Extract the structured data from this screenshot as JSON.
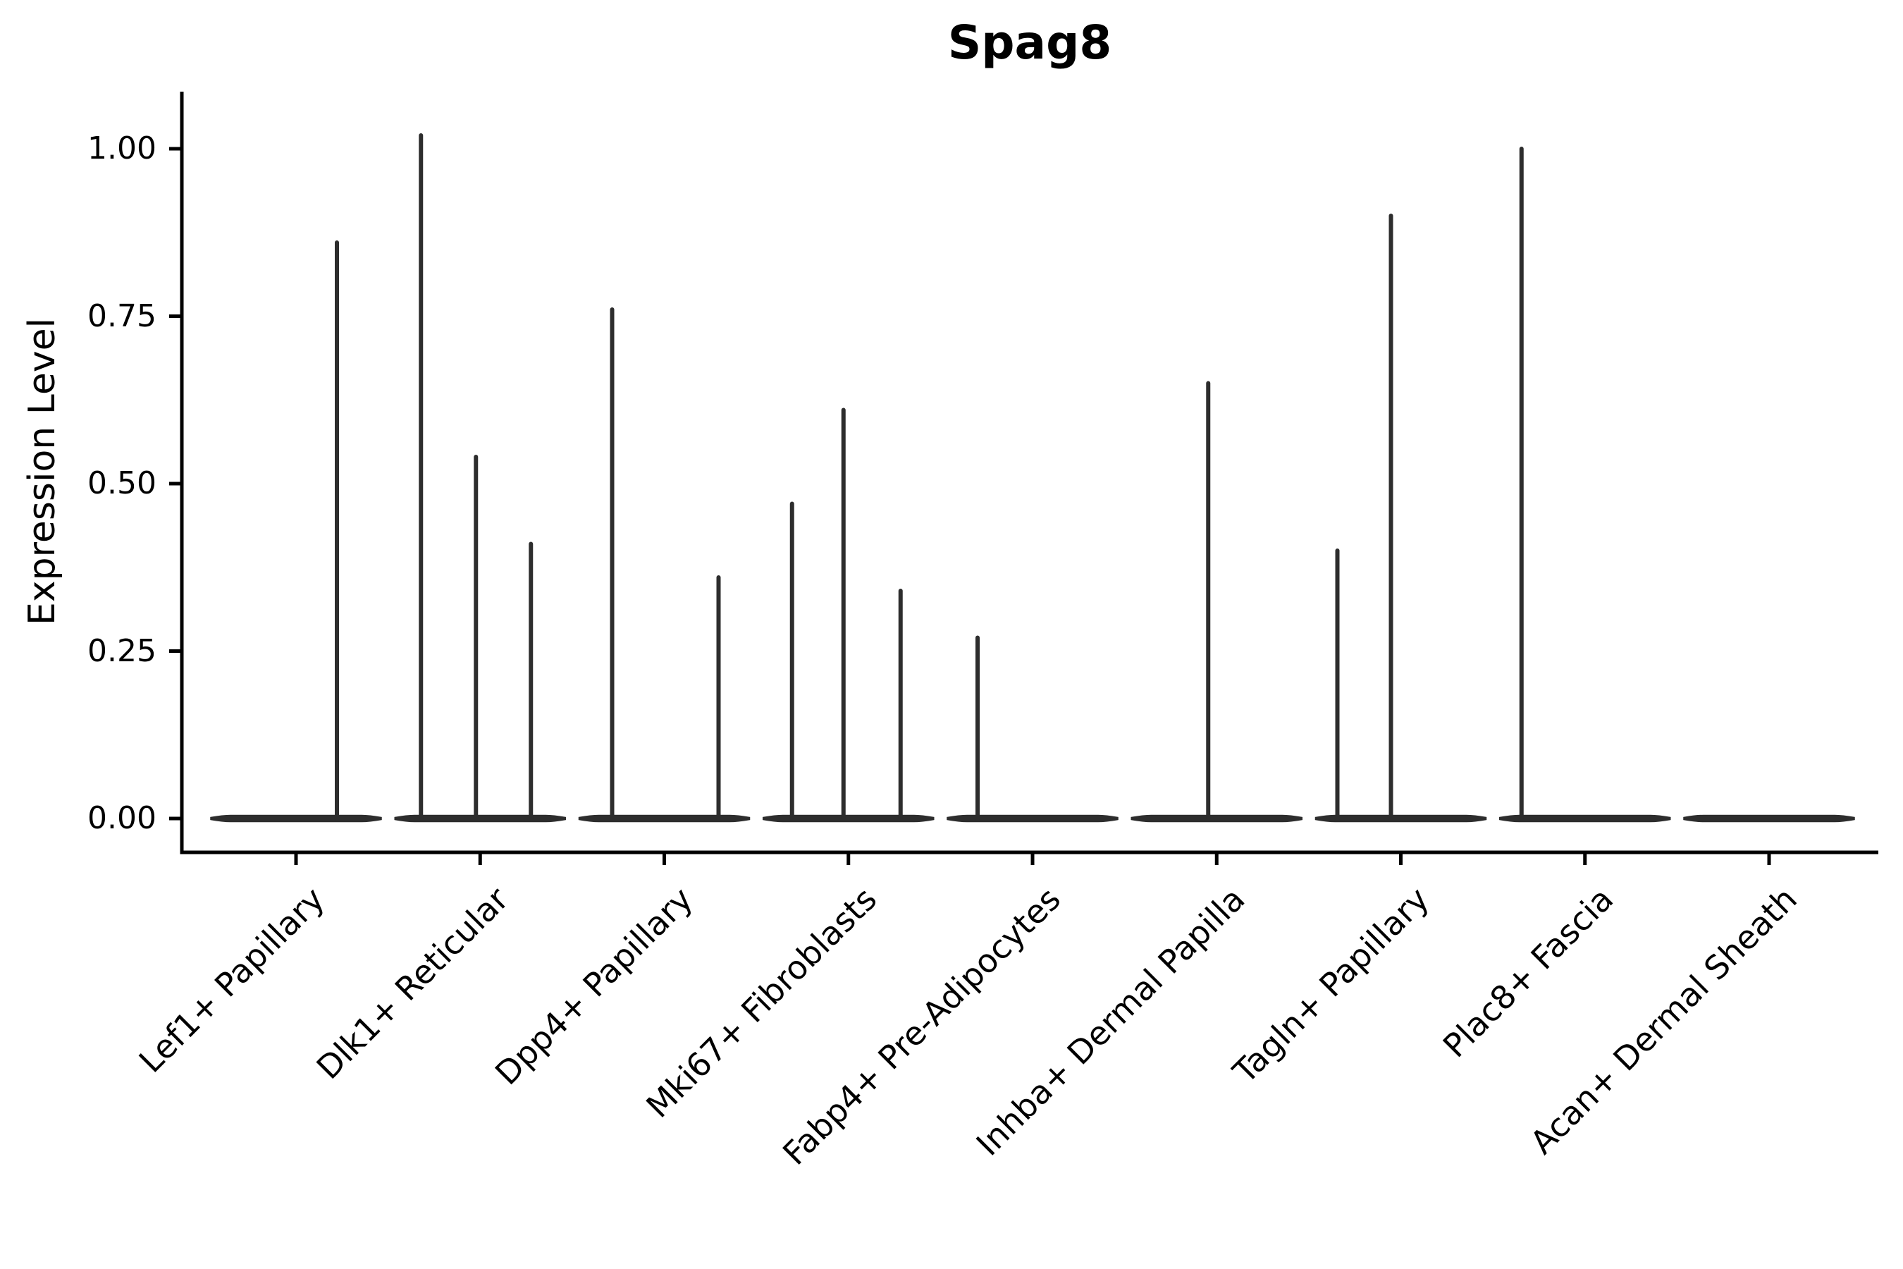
{
  "title": "Spag8",
  "y_axis": {
    "label": "Expression Level",
    "tick_labels": [
      "0.00",
      "0.25",
      "0.50",
      "0.75",
      "1.00"
    ],
    "tick_values": [
      0,
      0.25,
      0.5,
      0.75,
      1.0
    ]
  },
  "colors": {
    "violin": "#2d2d2d",
    "axis": "#000000",
    "text": "#000000",
    "background": "#ffffff"
  },
  "chart_data": {
    "type": "violin",
    "title": "Spag8",
    "xlabel": "",
    "ylabel": "Expression Level",
    "ylim": [
      -0.05,
      1.08
    ],
    "grid": false,
    "legend": "none",
    "y_ticks": [
      0,
      0.25,
      0.5,
      0.75,
      1.0
    ],
    "y_tick_labels": [
      "0.00",
      "0.25",
      "0.50",
      "0.75",
      "1.00"
    ],
    "categories": [
      "Lef1+ Papillary",
      "Dlk1+ Reticular",
      "Dpp4+ Papillary",
      "Mki67+ Fibroblasts",
      "Fabp4+ Pre-Adipocytes",
      "Inhba+ Dermal Papilla",
      "Tagln+ Papillary",
      "Plac8+ Fascia",
      "Acan+ Dermal Sheath"
    ],
    "description": "Violin plot of expression level per cluster; each violin is flat at 0 with thin spikes marking rare expressing cells.",
    "series": [
      {
        "category": "Lef1+ Papillary",
        "baseline_value": 0,
        "spikes": [
          {
            "offset": 58,
            "value": 0.86
          }
        ]
      },
      {
        "category": "Dlk1+ Reticular",
        "baseline_value": 0,
        "spikes": [
          {
            "offset": -84,
            "value": 1.02
          },
          {
            "offset": -6,
            "value": 0.54
          },
          {
            "offset": 72,
            "value": 0.41
          }
        ]
      },
      {
        "category": "Dpp4+ Papillary",
        "baseline_value": 0,
        "spikes": [
          {
            "offset": -74,
            "value": 0.76
          },
          {
            "offset": 77,
            "value": 0.36
          }
        ]
      },
      {
        "category": "Mki67+ Fibroblasts",
        "baseline_value": 0,
        "spikes": [
          {
            "offset": -80,
            "value": 0.47
          },
          {
            "offset": -7,
            "value": 0.61
          },
          {
            "offset": 74,
            "value": 0.34
          }
        ]
      },
      {
        "category": "Fabp4+ Pre-Adipocytes",
        "baseline_value": 0,
        "spikes": [
          {
            "offset": -78,
            "value": 0.27
          }
        ]
      },
      {
        "category": "Inhba+ Dermal Papilla",
        "baseline_value": 0,
        "spikes": [
          {
            "offset": -12,
            "value": 0.65
          }
        ]
      },
      {
        "category": "Tagln+ Papillary",
        "baseline_value": 0,
        "spikes": [
          {
            "offset": -90,
            "value": 0.4
          },
          {
            "offset": -14,
            "value": 0.9
          }
        ]
      },
      {
        "category": "Plac8+ Fascia",
        "baseline_value": 0,
        "spikes": [
          {
            "offset": -90,
            "value": 1.0
          }
        ]
      },
      {
        "category": "Acan+ Dermal Sheath",
        "baseline_value": 0,
        "spikes": []
      }
    ]
  }
}
